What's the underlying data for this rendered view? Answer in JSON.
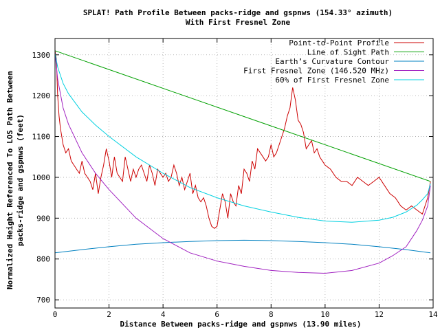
{
  "chart_data": {
    "type": "line",
    "title": "SPLAT! Path Profile Between packs-ridge and gspnws (154.33° azimuth)",
    "subtitle": "With First Fresnel Zone",
    "xlabel": "Distance Between packs-ridge and gspnws (13.90 miles)",
    "ylabel_line1": "Normalized Height Referenced To LOS Path Between",
    "ylabel_line2": "packs-ridge and gspnws (feet)",
    "xlim": [
      0,
      14
    ],
    "ylim": [
      680,
      1340
    ],
    "x_ticks": [
      0,
      2,
      4,
      6,
      8,
      10,
      12,
      14
    ],
    "y_ticks": [
      700,
      800,
      900,
      1000,
      1100,
      1200,
      1300
    ],
    "grid": true,
    "legend_position": "top-right",
    "series": [
      {
        "name": "Point-to-Point Profile",
        "color": "#cc0000",
        "x": [
          0,
          0.05,
          0.1,
          0.15,
          0.2,
          0.3,
          0.4,
          0.5,
          0.6,
          0.7,
          0.8,
          0.9,
          1.0,
          1.1,
          1.2,
          1.3,
          1.4,
          1.5,
          1.6,
          1.7,
          1.8,
          1.9,
          2.0,
          2.1,
          2.2,
          2.3,
          2.4,
          2.5,
          2.6,
          2.7,
          2.8,
          2.9,
          3.0,
          3.1,
          3.2,
          3.3,
          3.4,
          3.5,
          3.6,
          3.7,
          3.8,
          3.9,
          4.0,
          4.1,
          4.2,
          4.3,
          4.4,
          4.5,
          4.6,
          4.7,
          4.8,
          4.9,
          5.0,
          5.1,
          5.2,
          5.3,
          5.4,
          5.5,
          5.6,
          5.7,
          5.8,
          5.9,
          6.0,
          6.1,
          6.2,
          6.3,
          6.4,
          6.5,
          6.6,
          6.7,
          6.8,
          6.9,
          7.0,
          7.1,
          7.2,
          7.3,
          7.4,
          7.5,
          7.6,
          7.7,
          7.8,
          7.9,
          8.0,
          8.1,
          8.2,
          8.3,
          8.4,
          8.5,
          8.6,
          8.7,
          8.8,
          8.9,
          9.0,
          9.1,
          9.2,
          9.3,
          9.4,
          9.5,
          9.6,
          9.7,
          9.8,
          9.9,
          10.0,
          10.2,
          10.4,
          10.6,
          10.8,
          11.0,
          11.2,
          11.4,
          11.6,
          11.8,
          12.0,
          12.2,
          12.4,
          12.6,
          12.8,
          13.0,
          13.2,
          13.4,
          13.6,
          13.8,
          13.9
        ],
        "values": [
          1310,
          1290,
          1200,
          1150,
          1120,
          1080,
          1060,
          1070,
          1040,
          1030,
          1020,
          1010,
          1040,
          1010,
          1000,
          990,
          970,
          1010,
          960,
          1000,
          1030,
          1070,
          1040,
          1000,
          1050,
          1010,
          1000,
          990,
          1050,
          1020,
          990,
          1020,
          1000,
          1020,
          1030,
          1010,
          990,
          1030,
          1010,
          980,
          1020,
          1010,
          1000,
          1010,
          990,
          1000,
          1030,
          1010,
          980,
          1000,
          970,
          990,
          1010,
          960,
          980,
          950,
          940,
          950,
          930,
          900,
          880,
          875,
          880,
          920,
          960,
          940,
          900,
          960,
          940,
          930,
          980,
          960,
          1020,
          1010,
          990,
          1040,
          1020,
          1070,
          1060,
          1050,
          1040,
          1050,
          1080,
          1050,
          1060,
          1080,
          1100,
          1120,
          1150,
          1170,
          1220,
          1190,
          1140,
          1130,
          1110,
          1070,
          1080,
          1090,
          1060,
          1070,
          1050,
          1040,
          1030,
          1020,
          1000,
          990,
          990,
          980,
          1000,
          990,
          980,
          990,
          1000,
          980,
          960,
          950,
          930,
          920,
          930,
          920,
          910,
          950,
          990
        ]
      },
      {
        "name": "Line of Sight Path",
        "color": "#00a000",
        "x": [
          0,
          13.9
        ],
        "values": [
          1310,
          990
        ]
      },
      {
        "name": "Earth’s Curvature Contour",
        "color": "#0080c0",
        "x": [
          0,
          1,
          2,
          3,
          4,
          5,
          6,
          7,
          8,
          9,
          10,
          11,
          12,
          13,
          13.9
        ],
        "values": [
          815,
          823,
          830,
          836,
          840,
          843,
          845,
          846,
          845,
          843,
          840,
          836,
          830,
          823,
          815
        ]
      },
      {
        "name": "First Fresnel Zone (146.520 MHz)",
        "color": "#a020c0",
        "x": [
          0,
          0.1,
          0.3,
          0.5,
          1,
          1.5,
          2,
          3,
          4,
          5,
          6,
          7,
          8,
          9,
          10,
          11,
          12,
          12.5,
          13,
          13.4,
          13.6,
          13.8,
          13.9
        ],
        "values": [
          1305,
          1240,
          1170,
          1130,
          1060,
          1010,
          970,
          900,
          850,
          815,
          795,
          782,
          772,
          767,
          765,
          772,
          790,
          808,
          830,
          870,
          895,
          930,
          980
        ]
      },
      {
        "name": "60% of First Fresnel Zone",
        "color": "#00d0e0",
        "x": [
          0,
          0.1,
          0.3,
          0.5,
          1,
          1.5,
          2,
          3,
          4,
          5,
          6,
          7,
          8,
          9,
          10,
          11,
          12,
          12.5,
          13,
          13.4,
          13.6,
          13.8,
          13.9
        ],
        "values": [
          1305,
          1270,
          1230,
          1205,
          1160,
          1128,
          1100,
          1050,
          1010,
          975,
          950,
          930,
          915,
          902,
          893,
          890,
          895,
          902,
          915,
          932,
          945,
          960,
          985
        ]
      }
    ]
  }
}
